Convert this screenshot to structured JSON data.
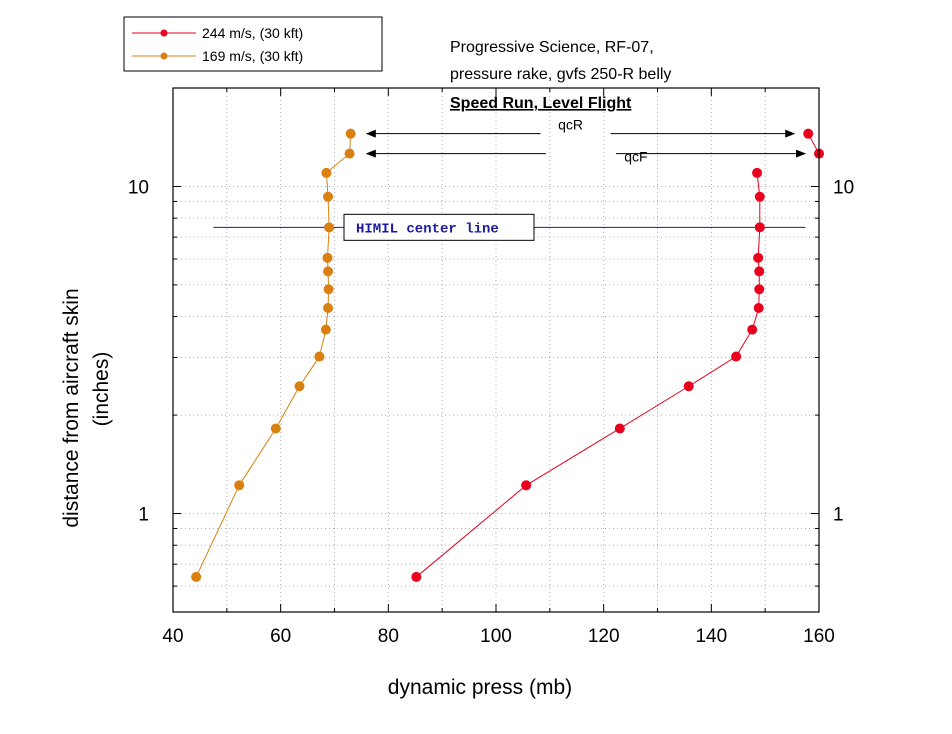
{
  "chart_data": {
    "type": "line",
    "title": "Progressive Science, RF-07,",
    "subtitle": "pressure rake, gvfs 250-R belly",
    "heading": "Speed Run, Level Flight",
    "xlabel": "dynamic press (mb)",
    "ylabel_line1": "distance from aircraft skin",
    "ylabel_line2": "(inches)",
    "xlim": [
      40,
      160
    ],
    "ylim": [
      0.5,
      20
    ],
    "yscale": "log",
    "x_ticks": [
      "40",
      "60",
      "80",
      "100",
      "120",
      "140",
      "160"
    ],
    "y_ticks": [
      {
        "value": 1,
        "label": "1"
      },
      {
        "value": 10,
        "label": "10"
      }
    ],
    "grid": true,
    "legend_position": "top-left",
    "series": [
      {
        "name": "244 m/s, (30 kft)",
        "color": "#e8001c",
        "points": [
          [
            85.2,
            0.64
          ],
          [
            105.6,
            1.22
          ],
          [
            123.0,
            1.82
          ],
          [
            135.8,
            2.45
          ],
          [
            144.6,
            3.02
          ],
          [
            147.6,
            3.65
          ],
          [
            148.8,
            4.25
          ],
          [
            148.9,
            4.85
          ],
          [
            148.9,
            5.5
          ],
          [
            148.7,
            6.05
          ],
          [
            149.0,
            7.5
          ],
          [
            149.0,
            9.3
          ],
          [
            148.5,
            11.0
          ]
        ],
        "extra_points": [
          [
            158.0,
            14.5
          ],
          [
            160.0,
            12.6
          ]
        ]
      },
      {
        "name": "169 m/s, (30 kft)",
        "color": "#d98010",
        "points": [
          [
            44.3,
            0.64
          ],
          [
            52.3,
            1.22
          ],
          [
            59.1,
            1.82
          ],
          [
            63.5,
            2.45
          ],
          [
            67.2,
            3.02
          ],
          [
            68.4,
            3.65
          ],
          [
            68.8,
            4.25
          ],
          [
            68.9,
            4.85
          ],
          [
            68.8,
            5.5
          ],
          [
            68.7,
            6.05
          ],
          [
            69.0,
            7.5
          ],
          [
            68.8,
            9.3
          ],
          [
            68.5,
            11.0
          ],
          [
            72.8,
            12.6
          ],
          [
            73.0,
            14.5
          ]
        ]
      }
    ],
    "center_line": {
      "label": "HIMIL center line",
      "y": 7.5,
      "x_range": [
        47.5,
        157.5
      ],
      "color": "#1a1aa0"
    },
    "annotations": [
      {
        "label": "qcR",
        "y": 14.5,
        "x_from": 76,
        "x_to": 158
      },
      {
        "label": "qcF",
        "y": 12.6,
        "x_from": 76,
        "x_to": 160
      }
    ]
  }
}
